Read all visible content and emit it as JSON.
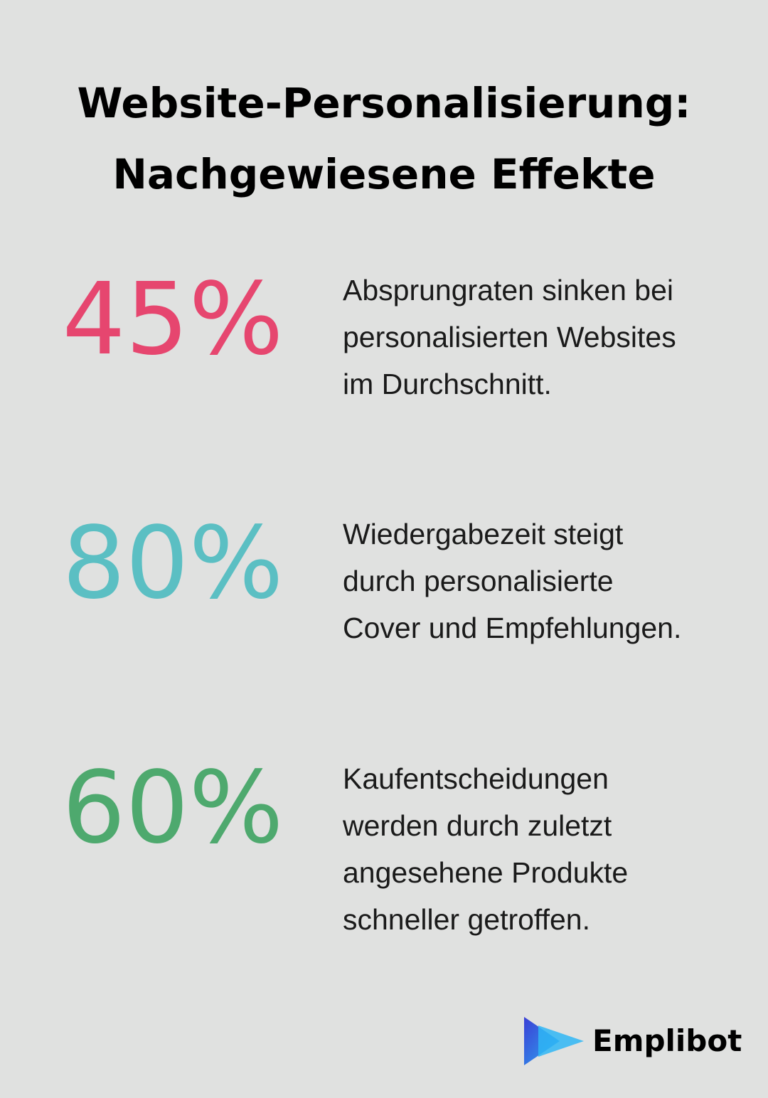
{
  "title_lines": [
    "Website-Personalisierung:",
    "Nachgewiesene Effekte"
  ],
  "stats": [
    {
      "value": "45%",
      "color": "#e6466f",
      "text": "Absprungraten sinken bei personalisierten Websites im Durchschnitt."
    },
    {
      "value": "80%",
      "color": "#5bbfc3",
      "text": "Wiedergabezeit steigt durch personalisierte Cover und Empfehlungen."
    },
    {
      "value": "60%",
      "color": "#4ea96e",
      "text": "Kaufentscheidungen werden durch zuletzt angesehene Produkte schneller getroffen."
    }
  ],
  "brand": "Emplibot"
}
